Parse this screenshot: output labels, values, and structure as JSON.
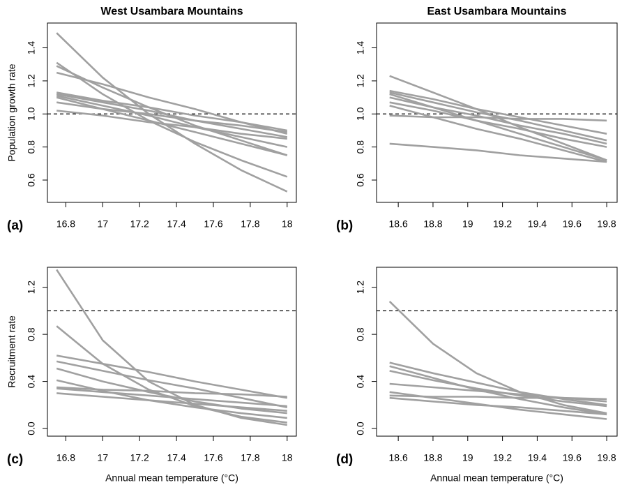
{
  "chart_data": [
    {
      "type": "line",
      "title": "West Usambara Mountains",
      "ylabel": "Population growth rate",
      "panel_label": "(a)",
      "x": [
        16.75,
        17.0,
        17.25,
        17.5,
        17.75,
        18.0
      ],
      "xlim": [
        16.7,
        18.05
      ],
      "xticks": [
        16.8,
        17,
        17.2,
        17.4,
        17.6,
        17.8,
        18
      ],
      "ylim": [
        0.465,
        1.55
      ],
      "yticks": [
        0.6,
        0.8,
        {
          "value": 1,
          "label": "1.0"
        },
        1.2,
        1.4
      ],
      "hline": 1,
      "line_color": "#a0a0a0",
      "series": [
        {
          "values": [
            1.49,
            1.22,
            1.0,
            0.82,
            0.66,
            0.53
          ]
        },
        {
          "values": [
            1.31,
            1.12,
            0.96,
            0.83,
            0.72,
            0.62
          ]
        },
        {
          "values": [
            1.29,
            1.16,
            1.04,
            0.93,
            0.84,
            0.75
          ]
        },
        {
          "values": [
            1.25,
            1.18,
            1.1,
            1.03,
            0.95,
            0.88
          ]
        },
        {
          "values": [
            1.13,
            1.08,
            1.04,
            0.99,
            0.95,
            0.9
          ]
        },
        {
          "values": [
            1.12,
            1.07,
            1.02,
            0.96,
            0.91,
            0.86
          ]
        },
        {
          "values": [
            1.11,
            1.05,
            0.99,
            0.92,
            0.86,
            0.8
          ]
        },
        {
          "values": [
            1.1,
            1.03,
            0.96,
            0.89,
            0.82,
            0.75
          ]
        },
        {
          "values": [
            1.07,
            1.03,
            1.0,
            0.96,
            0.93,
            0.89
          ]
        },
        {
          "values": [
            1.02,
            0.99,
            0.95,
            0.92,
            0.88,
            0.85
          ]
        }
      ]
    },
    {
      "type": "line",
      "title": "East Usambara Mountains",
      "panel_label": "(b)",
      "x": [
        18.55,
        18.8,
        19.05,
        19.3,
        19.55,
        19.8
      ],
      "xlim": [
        18.475,
        19.86
      ],
      "xticks": [
        18.6,
        18.8,
        19,
        19.2,
        19.4,
        19.6,
        19.8
      ],
      "ylim": [
        0.465,
        1.55
      ],
      "yticks": [
        0.6,
        0.8,
        {
          "value": 1,
          "label": "1.0"
        },
        1.2,
        1.4
      ],
      "hline": 1,
      "line_color": "#a0a0a0",
      "series": [
        {
          "values": [
            1.23,
            1.13,
            1.03,
            0.92,
            0.82,
            0.72
          ]
        },
        {
          "values": [
            1.14,
            1.09,
            1.03,
            0.98,
            0.93,
            0.88
          ]
        },
        {
          "values": [
            1.13,
            1.07,
            1.01,
            0.96,
            0.9,
            0.84
          ]
        },
        {
          "values": [
            1.12,
            1.04,
            0.96,
            0.88,
            0.8,
            0.72
          ]
        },
        {
          "values": [
            1.1,
            1.04,
            0.99,
            0.93,
            0.88,
            0.82
          ]
        },
        {
          "values": [
            1.07,
            1.02,
            0.96,
            0.91,
            0.85,
            0.8
          ]
        },
        {
          "values": [
            1.05,
            0.98,
            0.91,
            0.85,
            0.78,
            0.71
          ]
        },
        {
          "values": [
            0.99,
            0.98,
            0.98,
            0.97,
            0.97,
            0.96
          ]
        },
        {
          "values": [
            0.82,
            0.8,
            0.78,
            0.75,
            0.73,
            0.71
          ]
        }
      ]
    },
    {
      "type": "line",
      "ylabel": "Recruitment rate",
      "xlabel": "Annual mean temperature (°C)",
      "panel_label": "(c)",
      "x": [
        16.75,
        17.0,
        17.25,
        17.5,
        17.75,
        18.0
      ],
      "xlim": [
        16.7,
        18.05
      ],
      "xticks": [
        16.8,
        17,
        17.2,
        17.4,
        17.6,
        17.8,
        18
      ],
      "ylim": [
        -0.065,
        1.37
      ],
      "yticks": [
        {
          "value": 0,
          "label": "0.0"
        },
        0.4,
        0.8,
        1.2
      ],
      "hline": 1,
      "line_color": "#a0a0a0",
      "series": [
        {
          "values": [
            1.35,
            0.75,
            0.4,
            0.2,
            0.09,
            0.03
          ]
        },
        {
          "values": [
            0.87,
            0.55,
            0.33,
            0.19,
            0.1,
            0.05
          ]
        },
        {
          "values": [
            0.62,
            0.55,
            0.48,
            0.4,
            0.33,
            0.26
          ]
        },
        {
          "values": [
            0.57,
            0.49,
            0.41,
            0.34,
            0.26,
            0.18
          ]
        },
        {
          "values": [
            0.51,
            0.4,
            0.31,
            0.23,
            0.17,
            0.13
          ]
        },
        {
          "values": [
            0.41,
            0.32,
            0.24,
            0.18,
            0.13,
            0.09
          ]
        },
        {
          "values": [
            0.35,
            0.33,
            0.32,
            0.3,
            0.29,
            0.27
          ]
        },
        {
          "values": [
            0.34,
            0.31,
            0.28,
            0.25,
            0.22,
            0.19
          ]
        },
        {
          "values": [
            0.3,
            0.27,
            0.24,
            0.21,
            0.18,
            0.15
          ]
        }
      ]
    },
    {
      "type": "line",
      "xlabel": "Annual mean temperature (°C)",
      "panel_label": "(d)",
      "x": [
        18.55,
        18.8,
        19.05,
        19.3,
        19.55,
        19.8
      ],
      "xlim": [
        18.475,
        19.86
      ],
      "xticks": [
        18.6,
        18.8,
        19,
        19.2,
        19.4,
        19.6,
        19.8
      ],
      "ylim": [
        -0.065,
        1.37
      ],
      "yticks": [
        {
          "value": 0,
          "label": "0.0"
        },
        0.4,
        0.8,
        1.2
      ],
      "hline": 1,
      "line_color": "#a0a0a0",
      "series": [
        {
          "values": [
            1.08,
            0.72,
            0.47,
            0.31,
            0.2,
            0.13
          ]
        },
        {
          "values": [
            0.56,
            0.47,
            0.39,
            0.31,
            0.25,
            0.2
          ]
        },
        {
          "values": [
            0.53,
            0.43,
            0.33,
            0.25,
            0.18,
            0.12
          ]
        },
        {
          "values": [
            0.49,
            0.41,
            0.34,
            0.28,
            0.23,
            0.19
          ]
        },
        {
          "values": [
            0.38,
            0.35,
            0.32,
            0.29,
            0.26,
            0.23
          ]
        },
        {
          "values": [
            0.31,
            0.26,
            0.21,
            0.16,
            0.12,
            0.08
          ]
        },
        {
          "values": [
            0.28,
            0.27,
            0.27,
            0.26,
            0.26,
            0.25
          ]
        },
        {
          "values": [
            0.26,
            0.23,
            0.2,
            0.18,
            0.15,
            0.12
          ]
        }
      ]
    }
  ]
}
